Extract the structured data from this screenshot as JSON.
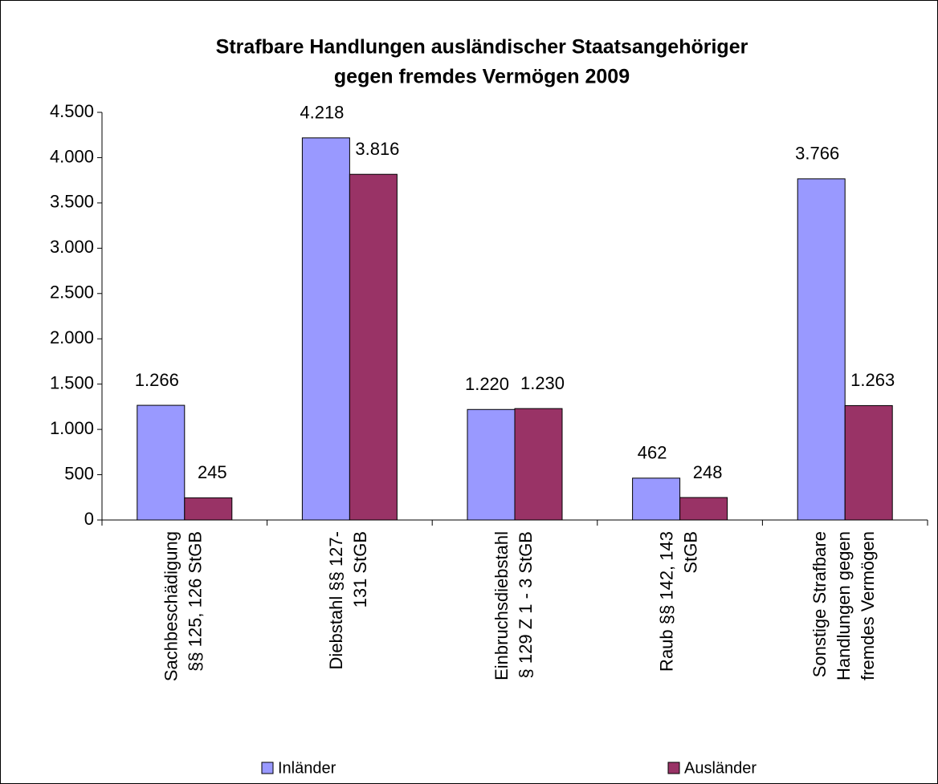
{
  "chart_data": {
    "type": "bar",
    "title": [
      "Strafbare Handlungen ausländischer Staatsangehöriger",
      "gegen fremdes Vermögen 2009"
    ],
    "categories": [
      [
        "Sachbeschädigung",
        "§§ 125, 126 StGB"
      ],
      [
        "Diebstahl §§ 127-",
        "131 StGB"
      ],
      [
        "Einbruchsdiebstahl",
        "§ 129 Z 1 - 3 StGB"
      ],
      [
        "Raub §§ 142, 143",
        "StGB"
      ],
      [
        "Sonstige Strafbare",
        "Handlungen gegen",
        "fremdes Vermögen"
      ]
    ],
    "series": [
      {
        "name": "Inländer",
        "color": "#9999ff",
        "values": [
          1266,
          4218,
          1220,
          462,
          3766
        ],
        "value_labels": [
          "1.266",
          "4.218",
          "1.220",
          "462",
          "3.766"
        ]
      },
      {
        "name": "Ausländer",
        "color": "#993366",
        "values": [
          245,
          3816,
          1230,
          248,
          1263
        ],
        "value_labels": [
          "245",
          "3.816",
          "1.230",
          "248",
          "1.263"
        ]
      }
    ],
    "ylim": [
      0,
      4500
    ],
    "yticks": [
      0,
      500,
      {
        "value": 1000,
        "label": "1.000"
      },
      {
        "value": 1500,
        "label": "1.500"
      },
      {
        "value": 2000,
        "label": "2.000"
      },
      {
        "value": 2500,
        "label": "2.500"
      },
      {
        "value": 3000,
        "label": "3.000"
      },
      {
        "value": 3500,
        "label": "3.500"
      },
      {
        "value": 4000,
        "label": "4.000"
      },
      {
        "value": 4500,
        "label": "4.500"
      }
    ],
    "grid": false,
    "legend": "bottom"
  }
}
